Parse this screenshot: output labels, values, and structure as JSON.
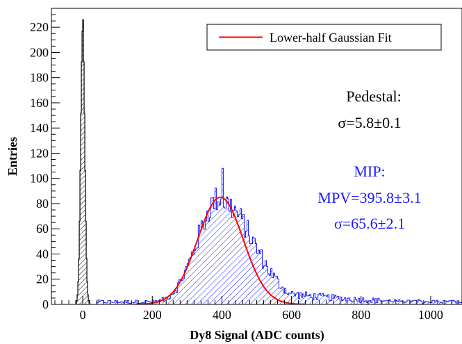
{
  "chart_data": {
    "type": "histogram",
    "title": "",
    "xlabel": "Dy8 Signal (ADC counts)",
    "ylabel": "Entries",
    "xlim": [
      -90,
      1090
    ],
    "ylim": [
      0,
      235
    ],
    "x_ticks": [
      0,
      200,
      400,
      600,
      800,
      1000
    ],
    "y_ticks": [
      0,
      20,
      40,
      60,
      80,
      100,
      120,
      140,
      160,
      180,
      200,
      220
    ],
    "grid": false,
    "legend": {
      "position": "top-right",
      "entries": [
        {
          "label": "Lower-half Gaussian Fit",
          "color": "#ff0000"
        }
      ]
    },
    "series": [
      {
        "kind": "pedestal",
        "color": "#000000",
        "hatch": "diagonal",
        "bin_width": 2,
        "gauss": {
          "mean": 0,
          "sigma": 5.8,
          "peak": 220
        }
      },
      {
        "kind": "mip",
        "color": "#1a1aff",
        "hatch": "diagonal",
        "bin_width": 4,
        "x_start": 40,
        "x_end": 1090,
        "peak_value": 108
      },
      {
        "kind": "fit",
        "name": "Lower-half Gaussian Fit",
        "color": "#ff0000",
        "function": "gaussian",
        "params": {
          "mpv": 395.8,
          "sigma": 65.6,
          "amplitude": 85
        },
        "x_range": [
          150,
          640
        ]
      }
    ],
    "annotations": {
      "pedestal_title": "Pedestal:",
      "pedestal_sigma": "σ=5.8±0.1",
      "mip_title": "MIP:",
      "mip_mpv": "MPV=395.8±3.1",
      "mip_sigma": "σ=65.6±2.1"
    }
  }
}
